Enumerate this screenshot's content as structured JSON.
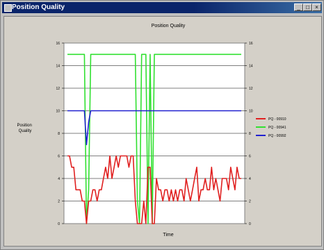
{
  "window": {
    "title": "Position Quality"
  },
  "chart_data": {
    "type": "line",
    "title": "Position Quality",
    "xlabel": "Time",
    "ylabel": "Position Quality",
    "ylim": [
      0,
      16
    ],
    "yticks": [
      0,
      2,
      4,
      6,
      8,
      10,
      12,
      14,
      16
    ],
    "grid": true,
    "legend_position": "right",
    "series": [
      {
        "name": "PQ - 00910",
        "color": "#e02020",
        "values": [
          6,
          6,
          5,
          5,
          3,
          3,
          3,
          2,
          2,
          0,
          2,
          2,
          3,
          3,
          2,
          3,
          3,
          4,
          5,
          4,
          6,
          4,
          5,
          6,
          5,
          6,
          6,
          6,
          6,
          5,
          6,
          6,
          2,
          0,
          0,
          0,
          2,
          0,
          5,
          5,
          0,
          0,
          4,
          3,
          3,
          2,
          3,
          3,
          2,
          3,
          2,
          3,
          2,
          3,
          3,
          2,
          4,
          3,
          2,
          3,
          4,
          5,
          2,
          3,
          3,
          4,
          3,
          3,
          5,
          3,
          4,
          3,
          2,
          4,
          4,
          4,
          3,
          5,
          4,
          3,
          5,
          4,
          4
        ]
      },
      {
        "name": "PQ - 00941",
        "color": "#30e030",
        "values": [
          15,
          15,
          15,
          15,
          15,
          15,
          15,
          15,
          15,
          15,
          15,
          15,
          15,
          15,
          15,
          15,
          15,
          15,
          15,
          15,
          15,
          15,
          15,
          15,
          15,
          15,
          15,
          15,
          15,
          15,
          15,
          15,
          15,
          15,
          15,
          15,
          15,
          15,
          15,
          15,
          15,
          15,
          15,
          15,
          15,
          15,
          15,
          15,
          15,
          15,
          15,
          15,
          15,
          15,
          15,
          15,
          15,
          15,
          15,
          15,
          15,
          15,
          15,
          15,
          15,
          15,
          15,
          15,
          15,
          15,
          15,
          15,
          15,
          15,
          15,
          15,
          15,
          15,
          15,
          15,
          15,
          15,
          15
        ],
        "drops": [
          [
            9,
            0
          ],
          [
            10,
            3
          ],
          [
            33,
            2
          ],
          [
            34,
            0
          ],
          [
            37,
            15
          ],
          [
            38,
            0
          ],
          [
            39,
            15
          ],
          [
            40,
            0
          ]
        ]
      },
      {
        "name": "PQ - 00992",
        "color": "#2020d0",
        "values": [
          10,
          10,
          10,
          10,
          10,
          10,
          10,
          10,
          10,
          10,
          10,
          10,
          10,
          10,
          10,
          10,
          10,
          10,
          10,
          10,
          10,
          10,
          10,
          10,
          10,
          10,
          10,
          10,
          10,
          10,
          10,
          10,
          10,
          10,
          10,
          10,
          10,
          10,
          10,
          10,
          10,
          10,
          10,
          10,
          10,
          10,
          10,
          10,
          10,
          10,
          10,
          10,
          10,
          10,
          10,
          10,
          10,
          10,
          10,
          10,
          10,
          10,
          10,
          10,
          10,
          10,
          10,
          10,
          10,
          10,
          10,
          10,
          10,
          10,
          10,
          10,
          10,
          10,
          10,
          10,
          10,
          10,
          10
        ],
        "drops": [
          [
            9,
            7
          ],
          [
            10,
            9
          ]
        ]
      }
    ]
  }
}
